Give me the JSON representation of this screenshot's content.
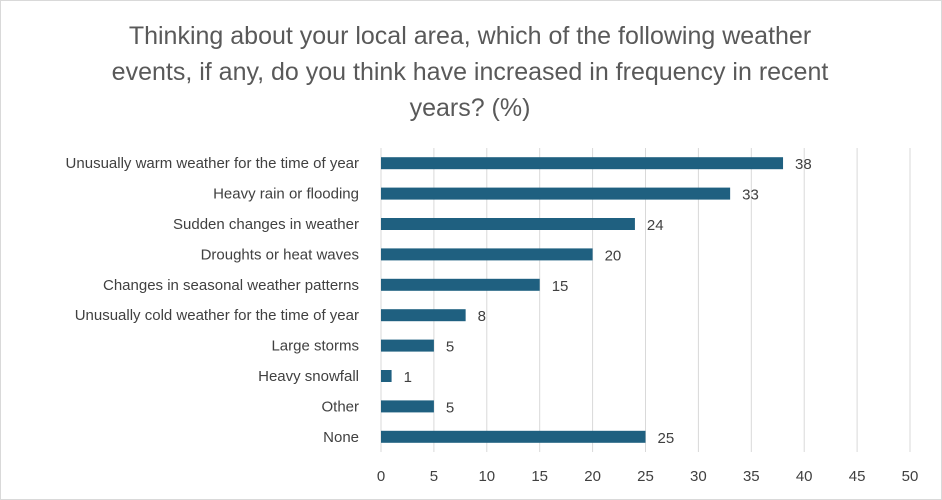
{
  "chart_data": {
    "type": "bar",
    "orientation": "horizontal",
    "title": "Thinking about your local area, which of the following weather events, if any, do you think have increased in frequency in recent years? (%)",
    "categories": [
      "Unusually warm weather for the time of year",
      "Heavy rain or flooding",
      "Sudden changes in weather",
      "Droughts or heat waves",
      "Changes in seasonal weather patterns",
      "Unusually cold weather for the time of year",
      "Large storms",
      "Heavy snowfall",
      "Other",
      "None"
    ],
    "values": [
      38,
      33,
      24,
      20,
      15,
      8,
      5,
      1,
      5,
      25
    ],
    "data_labels": [
      "38",
      "33",
      "24",
      "20",
      "15",
      "8",
      "5",
      "1",
      "5",
      "25"
    ],
    "xlim": [
      0,
      50
    ],
    "xticks": [
      "0",
      "5",
      "10",
      "15",
      "20",
      "25",
      "30",
      "35",
      "40",
      "45",
      "50"
    ],
    "gridlines": "vertical",
    "bar_color": "#1f6080",
    "grid_color": "#d9d9d9",
    "text_color": "#404040",
    "title_color": "#595959"
  }
}
